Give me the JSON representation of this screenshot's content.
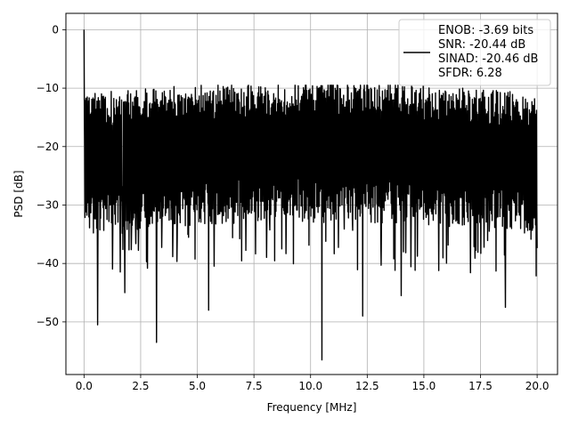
{
  "chart_data": {
    "type": "line",
    "title": "",
    "xlabel": "Frequency [MHz]",
    "ylabel": "PSD [dB]",
    "xlim": [
      -0.8,
      20.9
    ],
    "ylim": [
      -59.0,
      2.8
    ],
    "xticks": [
      0.0,
      2.5,
      5.0,
      7.5,
      10.0,
      12.5,
      15.0,
      17.5,
      20.0
    ],
    "xtick_labels": [
      "0.0",
      "2.5",
      "5.0",
      "7.5",
      "10.0",
      "12.5",
      "15.0",
      "17.5",
      "20.0"
    ],
    "yticks": [
      0,
      -10,
      -20,
      -30,
      -40,
      -50
    ],
    "ytick_labels": [
      "0",
      "−10",
      "−20",
      "−30",
      "−40",
      "−50"
    ],
    "grid": true,
    "legend_position": "top-right",
    "legend": [
      "ENOB: -3.69 bits",
      "SNR: -20.44 dB",
      "SINAD: -20.46 dB",
      "SFDR: 6.28"
    ],
    "series": [
      {
        "color": "#000000",
        "x_range": [
          0.0,
          20.0
        ],
        "peak": {
          "x": 0.0,
          "y": 0.0
        },
        "noise_floor_mean_db": -21,
        "envelope_low_db": -35,
        "envelope_high_db": -11,
        "notable_minima": [
          {
            "x": 0.6,
            "y": -50.5
          },
          {
            "x": 3.2,
            "y": -53.5
          },
          {
            "x": 5.5,
            "y": -48.0
          },
          {
            "x": 10.5,
            "y": -56.5
          },
          {
            "x": 12.3,
            "y": -49.0
          },
          {
            "x": 18.6,
            "y": -47.5
          },
          {
            "x": 1.8,
            "y": -45.0
          },
          {
            "x": 14.0,
            "y": -45.5
          }
        ]
      }
    ]
  }
}
